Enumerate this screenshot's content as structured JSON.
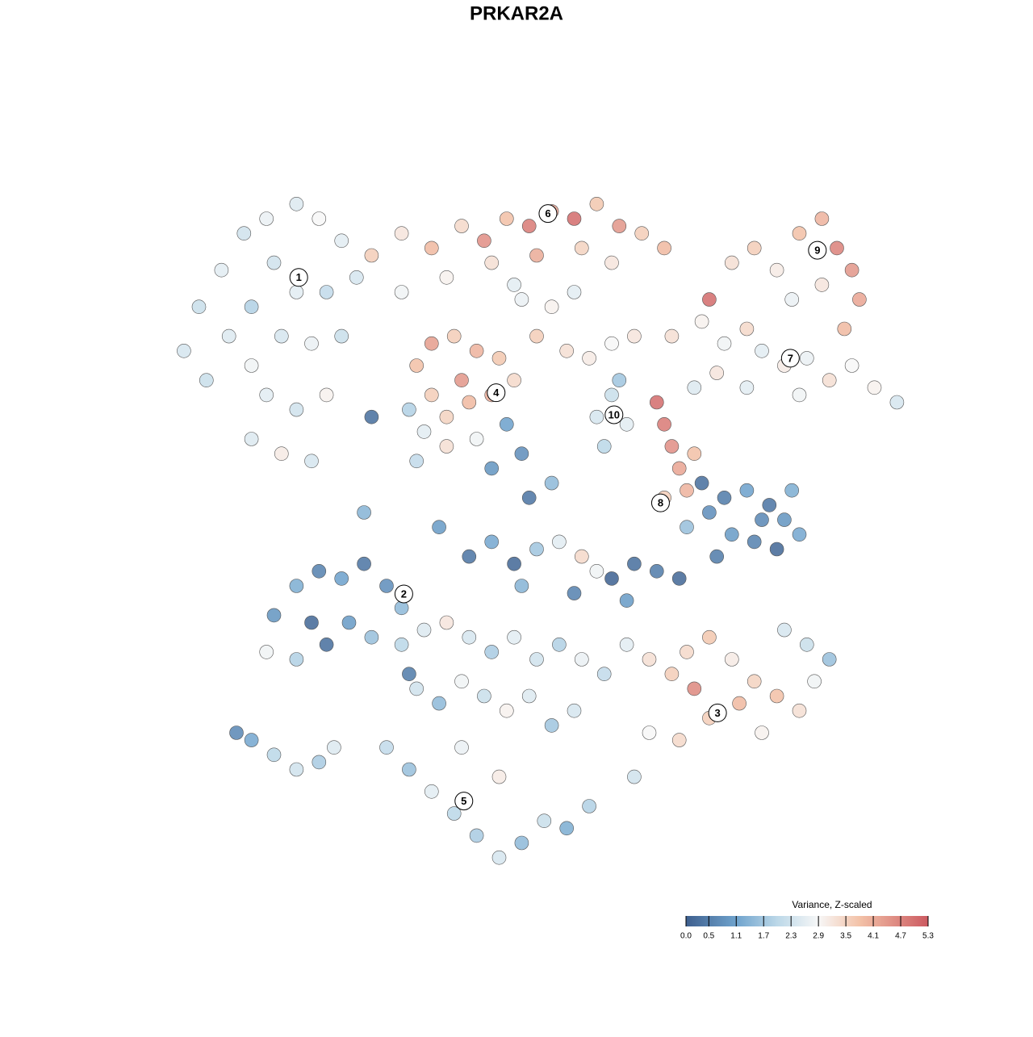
{
  "chart_data": {
    "type": "scatter",
    "title": "PRKAR2A",
    "xlim": [
      0,
      100
    ],
    "ylim": [
      0,
      100
    ],
    "x": [
      3,
      5,
      8,
      11,
      14,
      18,
      21,
      24,
      26,
      22,
      18,
      15,
      12,
      9,
      6,
      12,
      16,
      20,
      24,
      14,
      18,
      22,
      12,
      16,
      20,
      28,
      32,
      36,
      40,
      43,
      46,
      49,
      52,
      55,
      58,
      61,
      64,
      67,
      44,
      50,
      56,
      60,
      38,
      32,
      47,
      73,
      76,
      79,
      82,
      85,
      88,
      90,
      92,
      93,
      91,
      88,
      84,
      68,
      72,
      75,
      78,
      80,
      83,
      86,
      89,
      92,
      95,
      98,
      85,
      78,
      74,
      71,
      34,
      36,
      39,
      42,
      45,
      47,
      44,
      41,
      38,
      35,
      33,
      38,
      42,
      46,
      48,
      40,
      36,
      34,
      50,
      54,
      57,
      60,
      63,
      52,
      48,
      55,
      58,
      60,
      62,
      59,
      61,
      66,
      67,
      68,
      69,
      70,
      67,
      71,
      73,
      75,
      78,
      81,
      83,
      85,
      82,
      79,
      76,
      72,
      74,
      80,
      84,
      70,
      28,
      27,
      37,
      44,
      49,
      52,
      41,
      44,
      47,
      50,
      53,
      56,
      58,
      60,
      63,
      66,
      69,
      55,
      48,
      62,
      15,
      18,
      21,
      24,
      27,
      30,
      32,
      14,
      18,
      22,
      25,
      28,
      33,
      20,
      62,
      65,
      68,
      70,
      73,
      76,
      79,
      82,
      85,
      87,
      89,
      86,
      83,
      77,
      73,
      69,
      65,
      71,
      80,
      63,
      32,
      35,
      38,
      41,
      44,
      47,
      50,
      53,
      56,
      59,
      34,
      37,
      40,
      43,
      46,
      49,
      52,
      55,
      30,
      33,
      36,
      39,
      42,
      45,
      48,
      51,
      54,
      57,
      45,
      40,
      10,
      12,
      15,
      18,
      21,
      23
    ],
    "y": [
      72,
      78,
      83,
      88,
      90,
      92,
      90,
      87,
      82,
      80,
      80,
      84,
      78,
      74,
      68,
      70,
      74,
      73,
      74,
      66,
      64,
      66,
      60,
      58,
      57,
      85,
      88,
      86,
      89,
      87,
      90,
      89,
      91,
      90,
      92,
      89,
      88,
      86,
      84,
      85,
      86,
      84,
      82,
      80,
      81,
      79,
      84,
      86,
      83,
      88,
      90,
      86,
      83,
      79,
      75,
      81,
      79,
      74,
      76,
      73,
      75,
      72,
      70,
      71,
      68,
      70,
      67,
      65,
      66,
      67,
      69,
      67,
      70,
      73,
      74,
      72,
      71,
      68,
      66,
      65,
      63,
      61,
      64,
      59,
      60,
      62,
      58,
      68,
      66,
      57,
      74,
      72,
      71,
      73,
      74,
      78,
      79,
      80,
      63,
      66,
      62,
      59,
      68,
      65,
      62,
      59,
      56,
      53,
      52,
      58,
      50,
      52,
      53,
      51,
      49,
      47,
      45,
      46,
      47,
      54,
      44,
      49,
      53,
      48,
      63,
      50,
      48,
      56,
      52,
      54,
      44,
      46,
      43,
      45,
      46,
      44,
      42,
      41,
      43,
      42,
      41,
      39,
      40,
      38,
      36,
      40,
      42,
      41,
      43,
      40,
      37,
      31,
      30,
      32,
      35,
      33,
      28,
      35,
      32,
      30,
      28,
      31,
      33,
      30,
      27,
      25,
      23,
      27,
      30,
      32,
      34,
      24,
      22,
      19,
      20,
      26,
      20,
      14,
      32,
      34,
      35,
      33,
      31,
      33,
      30,
      32,
      30,
      28,
      26,
      24,
      27,
      25,
      23,
      25,
      21,
      23,
      18,
      15,
      12,
      9,
      6,
      3,
      5,
      8,
      7,
      10,
      14,
      18,
      20,
      19,
      17,
      15,
      16,
      18
    ],
    "values": [
      2.4,
      2.2,
      2.6,
      2.3,
      2.7,
      2.5,
      2.9,
      2.6,
      2.4,
      2.1,
      2.6,
      2.3,
      1.9,
      2.5,
      2.2,
      2.8,
      2.4,
      2.7,
      2.2,
      2.6,
      2.3,
      3.0,
      2.5,
      3.1,
      2.4,
      3.6,
      3.2,
      3.9,
      3.4,
      4.5,
      3.8,
      4.8,
      4.2,
      5.0,
      3.7,
      4.4,
      3.6,
      3.9,
      3.3,
      4.1,
      3.5,
      3.2,
      3.0,
      2.8,
      2.6,
      5.0,
      3.3,
      3.6,
      3.1,
      3.8,
      4.0,
      4.7,
      4.4,
      4.2,
      3.9,
      3.2,
      2.7,
      3.3,
      3.0,
      2.8,
      3.4,
      2.6,
      3.1,
      2.7,
      3.3,
      2.9,
      3.0,
      2.4,
      2.8,
      2.6,
      3.2,
      2.5,
      3.8,
      4.3,
      3.6,
      4.0,
      3.7,
      3.4,
      4.1,
      3.9,
      3.5,
      2.6,
      1.9,
      3.3,
      2.8,
      1.1,
      0.8,
      4.4,
      3.6,
      2.1,
      3.6,
      3.3,
      3.1,
      2.9,
      3.2,
      3.0,
      2.7,
      2.6,
      2.4,
      2.2,
      2.6,
      2.0,
      1.7,
      5.0,
      4.8,
      4.5,
      4.2,
      4.0,
      3.6,
      3.8,
      0.8,
      0.5,
      1.1,
      0.4,
      0.9,
      1.2,
      0.2,
      0.6,
      1.0,
      0.3,
      0.5,
      0.7,
      1.3,
      1.6,
      0.3,
      1.4,
      1.0,
      0.9,
      0.4,
      1.5,
      0.4,
      1.2,
      0.2,
      1.7,
      2.6,
      3.4,
      2.8,
      0.1,
      0.3,
      0.5,
      0.2,
      0.6,
      1.4,
      1.0,
      0.9,
      1.3,
      0.6,
      1.1,
      0.4,
      0.8,
      1.5,
      2.8,
      1.9,
      0.3,
      1.0,
      1.6,
      0.5,
      0.2,
      2.6,
      3.3,
      3.6,
      3.4,
      3.7,
      3.1,
      3.5,
      3.8,
      3.3,
      2.8,
      1.6,
      2.2,
      2.4,
      3.9,
      3.6,
      3.4,
      2.9,
      4.6,
      3.0,
      2.3,
      2.0,
      2.5,
      3.2,
      2.4,
      1.8,
      2.6,
      2.3,
      1.9,
      2.7,
      2.1,
      2.3,
      1.5,
      2.8,
      2.2,
      3.0,
      2.5,
      1.7,
      2.4,
      2.1,
      1.6,
      2.6,
      2.0,
      1.8,
      2.4,
      1.5,
      2.2,
      1.3,
      1.9,
      3.1,
      2.7,
      0.7,
      1.2,
      2.0,
      2.3,
      1.8,
      2.5
    ],
    "clusters": [
      {
        "label": "1",
        "x": 18.3,
        "y": 82
      },
      {
        "label": "2",
        "x": 32.3,
        "y": 38.9
      },
      {
        "label": "3",
        "x": 74.1,
        "y": 22.7
      },
      {
        "label": "4",
        "x": 44.6,
        "y": 66.3
      },
      {
        "label": "5",
        "x": 40.3,
        "y": 10.7
      },
      {
        "label": "6",
        "x": 51.5,
        "y": 90.7
      },
      {
        "label": "7",
        "x": 83.8,
        "y": 71
      },
      {
        "label": "8",
        "x": 66.5,
        "y": 51.3
      },
      {
        "label": "9",
        "x": 87.4,
        "y": 85.7
      },
      {
        "label": "10",
        "x": 60.3,
        "y": 63.3
      }
    ],
    "colorbar": {
      "title": "Variance, Z-scaled",
      "clim": [
        0,
        5.3
      ],
      "ticks": [
        {
          "value": 0,
          "label": "0.0"
        },
        0.5,
        1.1,
        1.7,
        2.3,
        2.9,
        3.5,
        4.1,
        4.7,
        5.3
      ],
      "colorscale": [
        [
          0,
          "#3e5f8e"
        ],
        [
          1.1,
          "#6fa3cd"
        ],
        [
          2.0,
          "#bcd8e8"
        ],
        [
          2.9,
          "#f7f7f7"
        ],
        [
          3.8,
          "#f3c2a8"
        ],
        [
          5.3,
          "#cc5a61"
        ]
      ]
    }
  }
}
